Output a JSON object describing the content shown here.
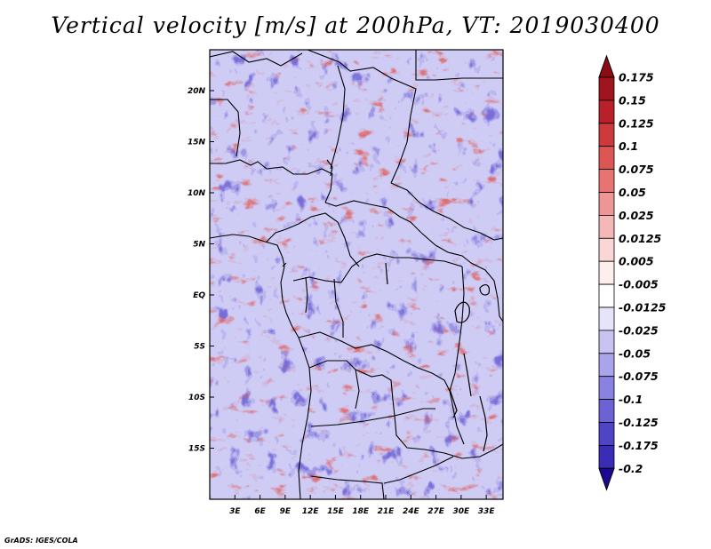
{
  "title": "Vertical velocity [m/s] at 200hPa, VT: 2019030400",
  "credit": "GrADS: IGES/COLA",
  "map": {
    "lat_range": [
      -20,
      24
    ],
    "lon_range": [
      0,
      35
    ],
    "lat_ticks": [
      {
        "value": 20,
        "label": "20N"
      },
      {
        "value": 15,
        "label": "15N"
      },
      {
        "value": 10,
        "label": "10N"
      },
      {
        "value": 5,
        "label": "5N"
      },
      {
        "value": 0,
        "label": "EQ"
      },
      {
        "value": -5,
        "label": "5S"
      },
      {
        "value": -10,
        "label": "10S"
      },
      {
        "value": -15,
        "label": "15S"
      }
    ],
    "lon_ticks": [
      {
        "value": 3,
        "label": "3E"
      },
      {
        "value": 6,
        "label": "6E"
      },
      {
        "value": 9,
        "label": "9E"
      },
      {
        "value": 12,
        "label": "12E"
      },
      {
        "value": 15,
        "label": "15E"
      },
      {
        "value": 18,
        "label": "18E"
      },
      {
        "value": 21,
        "label": "21E"
      },
      {
        "value": 24,
        "label": "24E"
      },
      {
        "value": 27,
        "label": "27E"
      },
      {
        "value": 30,
        "label": "30E"
      },
      {
        "value": 33,
        "label": "33E"
      }
    ]
  },
  "colorbar": {
    "levels": [
      {
        "label": "0.175",
        "color": "#a0141e"
      },
      {
        "label": "0.15",
        "color": "#b8202a"
      },
      {
        "label": "0.125",
        "color": "#cc3a3c"
      },
      {
        "label": "0.1",
        "color": "#dc5654"
      },
      {
        "label": "0.075",
        "color": "#e87472"
      },
      {
        "label": "0.05",
        "color": "#ee9696"
      },
      {
        "label": "0.025",
        "color": "#f4b8b6"
      },
      {
        "label": "0.0125",
        "color": "#fad6d4"
      },
      {
        "label": "0.005",
        "color": "#feeeee"
      },
      {
        "label": "-0.005",
        "color": "#ffffff"
      },
      {
        "label": "-0.0125",
        "color": "#e6e4fa"
      },
      {
        "label": "-0.025",
        "color": "#c8c4f2"
      },
      {
        "label": "-0.05",
        "color": "#aaa4ea"
      },
      {
        "label": "-0.075",
        "color": "#8a82e0"
      },
      {
        "label": "-0.1",
        "color": "#6c62d4"
      },
      {
        "label": "-0.125",
        "color": "#4e44c6"
      },
      {
        "label": "-0.175",
        "color": "#3a2cb4"
      },
      {
        "label": "-0.2",
        "color": "#2a18a0"
      }
    ],
    "top_arrow_color": "#8c0c14",
    "bottom_arrow_color": "#1c0890"
  }
}
